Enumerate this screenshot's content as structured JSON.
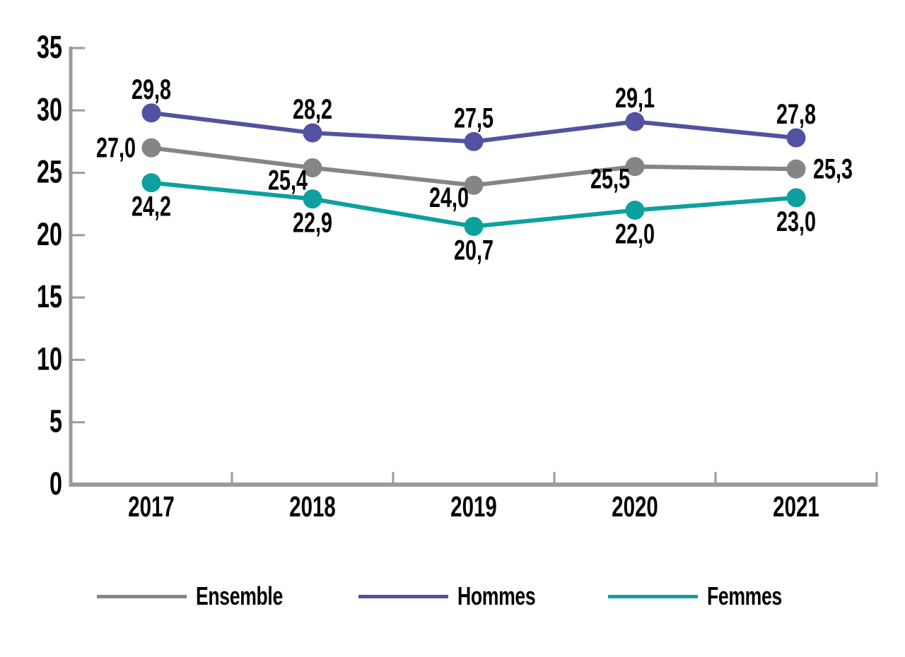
{
  "chart_data": {
    "type": "line",
    "categories": [
      "2017",
      "2018",
      "2019",
      "2020",
      "2021"
    ],
    "series": [
      {
        "name": "Ensemble",
        "color": "#858585",
        "values": [
          27.0,
          25.4,
          24.0,
          25.5,
          25.3
        ],
        "labels": [
          "27,0",
          "25,4",
          "24,0",
          "25,5",
          "25,3"
        ],
        "label_pos": [
          "left",
          "below-left",
          "below-left",
          "below-left",
          "right"
        ]
      },
      {
        "name": "Hommes",
        "color": "#5351a1",
        "values": [
          29.8,
          28.2,
          27.5,
          29.1,
          27.8
        ],
        "labels": [
          "29,8",
          "28,2",
          "27,5",
          "29,1",
          "27,8"
        ],
        "label_pos": [
          "above",
          "above",
          "above",
          "above",
          "above"
        ]
      },
      {
        "name": "Femmes",
        "color": "#0da09e",
        "values": [
          24.2,
          22.9,
          20.7,
          22.0,
          23.0
        ],
        "labels": [
          "24,2",
          "22,9",
          "20,7",
          "22,0",
          "23,0"
        ],
        "label_pos": [
          "below",
          "below",
          "below",
          "below",
          "below"
        ]
      }
    ],
    "ylim": [
      0,
      35
    ],
    "ytick_step": 5,
    "ytick_labels": [
      "0",
      "5",
      "10",
      "15",
      "20",
      "25",
      "30",
      "35"
    ],
    "grid": false,
    "legend_position": "bottom",
    "axis_color": "#9b9b9b",
    "label_color": "#000000",
    "decimal_separator": ","
  }
}
